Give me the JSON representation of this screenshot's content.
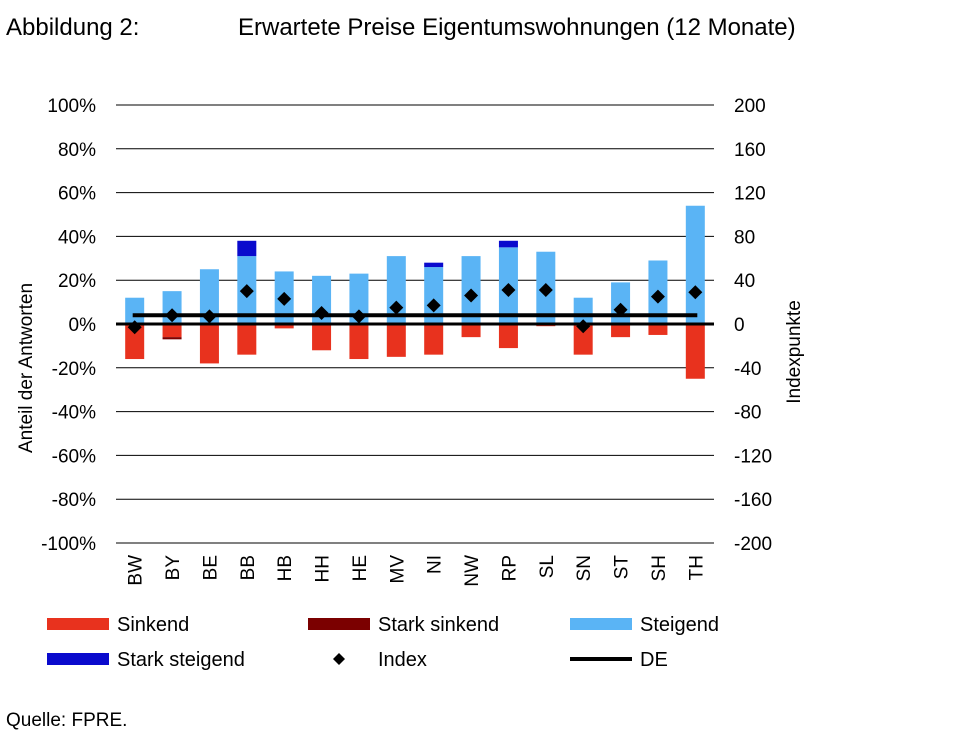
{
  "figure": {
    "label": "Abbildung 2:",
    "title": "Erwartete Preise Eigentumswohnungen (12 Monate)",
    "source": "Quelle: FPRE."
  },
  "chart_data": {
    "type": "bar",
    "stacked": true,
    "categories": [
      "BW",
      "BY",
      "BE",
      "BB",
      "HB",
      "HH",
      "HE",
      "MV",
      "NI",
      "NW",
      "RP",
      "SL",
      "SN",
      "ST",
      "SH",
      "TH"
    ],
    "series": [
      {
        "name": "Sinkend",
        "axis": "left",
        "color": "#e8321e",
        "values": [
          -16,
          -6,
          -18,
          -14,
          -2,
          -12,
          -16,
          -15,
          -14,
          -6,
          -11,
          -1,
          -14,
          -6,
          -5,
          -25
        ]
      },
      {
        "name": "Stark sinkend",
        "axis": "left",
        "color": "#7b0000",
        "values": [
          0,
          -1,
          0,
          0,
          0,
          0,
          0,
          0,
          0,
          0,
          0,
          0,
          0,
          0,
          0,
          0
        ]
      },
      {
        "name": "Steigend",
        "axis": "left",
        "color": "#5ab4f5",
        "values": [
          12,
          15,
          25,
          31,
          24,
          22,
          23,
          31,
          26,
          31,
          35,
          33,
          12,
          19,
          29,
          54
        ]
      },
      {
        "name": "Stark steigend",
        "axis": "left",
        "color": "#0a0acd",
        "values": [
          0,
          0,
          0,
          7,
          0,
          0,
          0,
          0,
          2,
          0,
          3,
          0,
          0,
          0,
          0,
          0
        ]
      },
      {
        "name": "Index",
        "axis": "right",
        "kind": "scatter",
        "marker": "diamond",
        "color": "#000000",
        "values": [
          -3,
          8,
          7,
          30,
          23,
          10,
          7,
          15,
          17,
          26,
          31,
          31,
          -2,
          13,
          25,
          29
        ]
      },
      {
        "name": "DE",
        "axis": "right",
        "kind": "line",
        "color": "#000000",
        "values": [
          8,
          8,
          8,
          8,
          8,
          8,
          8,
          8,
          8,
          8,
          8,
          8,
          8,
          8,
          8,
          8
        ]
      }
    ],
    "ylabel": "Anteil der Antworten",
    "ylabel_right": "Indexpunkte",
    "ylim": [
      -100,
      100
    ],
    "ylim_right": [
      -200,
      200
    ],
    "yticks": [
      "-100%",
      "-80%",
      "-60%",
      "-40%",
      "-20%",
      "0%",
      "20%",
      "40%",
      "60%",
      "80%",
      "100%"
    ],
    "yticks_right": [
      "-200",
      "-160",
      "-120",
      "-80",
      "-40",
      "0",
      "40",
      "80",
      "120",
      "160",
      "200"
    ],
    "grid": true,
    "legend_position": "bottom"
  }
}
